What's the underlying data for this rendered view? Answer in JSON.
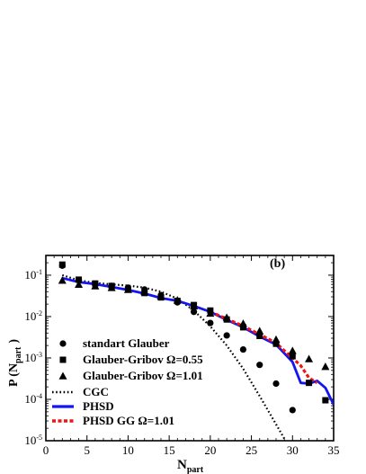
{
  "chart_data": {
    "type": "line",
    "panel_label": "(b)",
    "xlabel": "N",
    "xlabel_sub": "part",
    "ylabel": "P (N",
    "ylabel_sub": "part",
    "ylabel_close": ")",
    "xlim": [
      0,
      35
    ],
    "ylim": [
      1e-05,
      0.3
    ],
    "y_scale": "log",
    "x_ticks": [
      0,
      5,
      10,
      15,
      20,
      25,
      30,
      35
    ],
    "y_ticks": [
      {
        "value": 0.1,
        "base": "10",
        "exp": "-1"
      },
      {
        "value": 0.01,
        "base": "10",
        "exp": "-2"
      },
      {
        "value": 0.001,
        "base": "10",
        "exp": "-3"
      },
      {
        "value": 0.0001,
        "base": "10",
        "exp": "-4"
      },
      {
        "value": 1e-05,
        "base": "10",
        "exp": "-5"
      }
    ],
    "legend_position": "bottom-left",
    "series": [
      {
        "name": "standart Glauber",
        "kind": "marker",
        "marker": "circle",
        "color": "#000000",
        "points": [
          [
            2,
            0.17
          ],
          [
            4,
            0.075
          ],
          [
            6,
            0.062
          ],
          [
            8,
            0.055
          ],
          [
            10,
            0.05
          ],
          [
            12,
            0.045
          ],
          [
            14,
            0.033
          ],
          [
            16,
            0.022
          ],
          [
            18,
            0.013
          ],
          [
            20,
            0.007
          ],
          [
            22,
            0.0035
          ],
          [
            24,
            0.0016
          ],
          [
            26,
            0.00068
          ],
          [
            28,
            0.00024
          ],
          [
            30,
            5.5e-05
          ]
        ]
      },
      {
        "name": "Glauber-Gribov Ω=0.55",
        "kind": "marker",
        "marker": "square",
        "color": "#000000",
        "points": [
          [
            2,
            0.18
          ],
          [
            4,
            0.078
          ],
          [
            6,
            0.063
          ],
          [
            8,
            0.055
          ],
          [
            10,
            0.045
          ],
          [
            12,
            0.037
          ],
          [
            14,
            0.029
          ],
          [
            16,
            0.024
          ],
          [
            18,
            0.019
          ],
          [
            20,
            0.014
          ],
          [
            22,
            0.0085
          ],
          [
            24,
            0.0055
          ],
          [
            26,
            0.0034
          ],
          [
            28,
            0.0022
          ],
          [
            30,
            0.0011
          ],
          [
            32,
            0.00025
          ],
          [
            34,
            9.5e-05
          ]
        ]
      },
      {
        "name": "Glauber-Gribov Ω=1.01",
        "kind": "marker",
        "marker": "triangle",
        "color": "#000000",
        "points": [
          [
            2,
            0.075
          ],
          [
            4,
            0.06
          ],
          [
            6,
            0.055
          ],
          [
            8,
            0.05
          ],
          [
            10,
            0.045
          ],
          [
            12,
            0.04
          ],
          [
            14,
            0.031
          ],
          [
            16,
            0.025
          ],
          [
            18,
            0.018
          ],
          [
            20,
            0.012
          ],
          [
            22,
            0.0095
          ],
          [
            24,
            0.0068
          ],
          [
            26,
            0.0045
          ],
          [
            28,
            0.0028
          ],
          [
            30,
            0.0015
          ],
          [
            32,
            0.00095
          ],
          [
            34,
            0.00062
          ]
        ]
      },
      {
        "name": "CGC",
        "kind": "line",
        "style": "dotted",
        "color": "#000000",
        "points": [
          [
            2,
            0.1
          ],
          [
            4,
            0.075
          ],
          [
            6,
            0.065
          ],
          [
            8,
            0.06
          ],
          [
            10,
            0.056
          ],
          [
            12,
            0.05
          ],
          [
            14,
            0.04
          ],
          [
            16,
            0.027
          ],
          [
            18,
            0.014
          ],
          [
            20,
            0.0058
          ],
          [
            22,
            0.002
          ],
          [
            24,
            0.00055
          ],
          [
            26,
            0.00012
          ],
          [
            28,
            2.5e-05
          ],
          [
            29.5,
            7.5e-06
          ]
        ]
      },
      {
        "name": "PHSD",
        "kind": "line",
        "style": "solid",
        "color": "#1515ee",
        "points": [
          [
            2,
            0.085
          ],
          [
            4,
            0.068
          ],
          [
            6,
            0.061
          ],
          [
            8,
            0.052
          ],
          [
            10,
            0.044
          ],
          [
            12,
            0.036
          ],
          [
            14,
            0.028
          ],
          [
            16,
            0.024
          ],
          [
            18,
            0.018
          ],
          [
            20,
            0.013
          ],
          [
            22,
            0.0083
          ],
          [
            24,
            0.0055
          ],
          [
            26,
            0.0033
          ],
          [
            28,
            0.0021
          ],
          [
            29,
            0.0013
          ],
          [
            30,
            0.0008
          ],
          [
            31,
            0.00025
          ],
          [
            32,
            0.00024
          ],
          [
            33,
            0.00028
          ],
          [
            34,
            0.00019
          ],
          [
            35,
            7.5e-05
          ]
        ]
      },
      {
        "name": "PHSD GG Ω=1.01",
        "kind": "line",
        "style": "dashed",
        "color": "#ee1515",
        "points": [
          [
            20,
            0.013
          ],
          [
            22,
            0.0088
          ],
          [
            24,
            0.0059
          ],
          [
            26,
            0.0037
          ],
          [
            28,
            0.0023
          ],
          [
            29,
            0.0015
          ],
          [
            30,
            0.001
          ],
          [
            31,
            0.00065
          ],
          [
            32,
            0.00033
          ],
          [
            33,
            0.00025
          ]
        ]
      }
    ]
  }
}
